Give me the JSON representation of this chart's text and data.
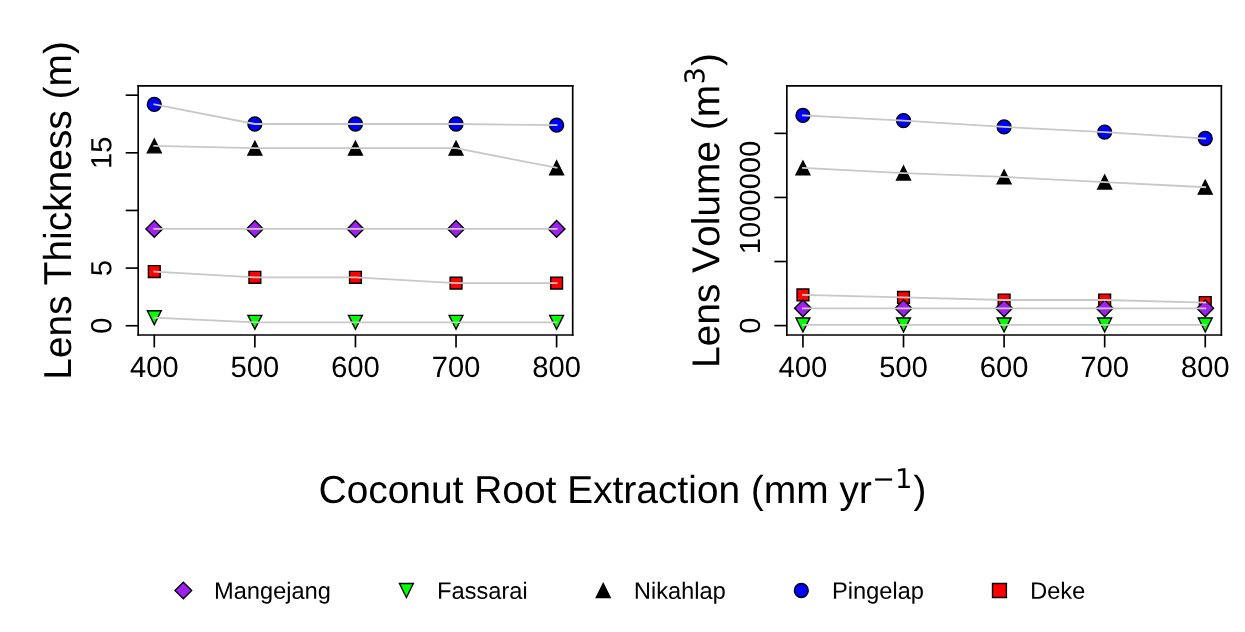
{
  "chart_data": [
    {
      "type": "line",
      "ylabel": "Lens Thickness (m)",
      "xlabel": "Coconut Root Extraction (mm yr$^{−1}$)",
      "x": [
        400,
        500,
        600,
        700,
        800
      ],
      "xlim": [
        384,
        816
      ],
      "xticks": [
        400,
        500,
        600,
        700,
        800
      ],
      "ylim": [
        -0.8,
        20.8
      ],
      "yticks": [
        0,
        5,
        {
          "value": 10,
          "label": null
        },
        15,
        {
          "value": 20,
          "label": null
        }
      ],
      "grid": false,
      "legend": "bottom",
      "series": [
        {
          "name": "Mangejang",
          "color": "#a020f0",
          "marker": "diamond",
          "values": [
            8.4,
            8.4,
            8.4,
            8.4,
            8.4
          ]
        },
        {
          "name": "Fassarai",
          "color": "#00ff00",
          "marker": "triangle_down",
          "values": [
            0.7,
            0.3,
            0.3,
            0.3,
            0.3
          ]
        },
        {
          "name": "Nikahlap",
          "color": "#000000",
          "marker": "triangle",
          "values": [
            15.6,
            15.4,
            15.4,
            15.4,
            13.7
          ]
        },
        {
          "name": "Pingelap",
          "color": "#0000ff",
          "marker": "circle",
          "values": [
            19.2,
            17.5,
            17.5,
            17.5,
            17.4
          ]
        },
        {
          "name": "Deke",
          "color": "#ff0000",
          "marker": "square",
          "values": [
            4.7,
            4.2,
            4.2,
            3.7,
            3.7
          ]
        }
      ]
    },
    {
      "type": "line",
      "ylabel": "Lens Volume (m$^{3}$)",
      "x": [
        400,
        500,
        600,
        700,
        800
      ],
      "xlim": [
        384,
        816
      ],
      "xticks": [
        400,
        500,
        600,
        700,
        800
      ],
      "ylim": [
        -73000,
        1870000
      ],
      "yticks": [
        0,
        {
          "value": 500000,
          "label": null
        },
        1000000,
        {
          "value": 1500000,
          "label": null
        }
      ],
      "grid": false,
      "series": [
        {
          "color": "#a020f0",
          "marker": "diamond",
          "values": [
            135000,
            135000,
            135000,
            135000,
            135000
          ]
        },
        {
          "color": "#00ff00",
          "marker": "triangle_down",
          "values": [
            5000,
            5000,
            5000,
            5000,
            5000
          ]
        },
        {
          "color": "#000000",
          "marker": "triangle",
          "values": [
            1230000,
            1190000,
            1160000,
            1120000,
            1080000
          ]
        },
        {
          "color": "#0000ff",
          "marker": "circle",
          "values": [
            1640000,
            1600000,
            1550000,
            1510000,
            1460000
          ]
        },
        {
          "color": "#ff0000",
          "marker": "square",
          "values": [
            240000,
            220000,
            200000,
            200000,
            180000
          ]
        }
      ]
    }
  ]
}
